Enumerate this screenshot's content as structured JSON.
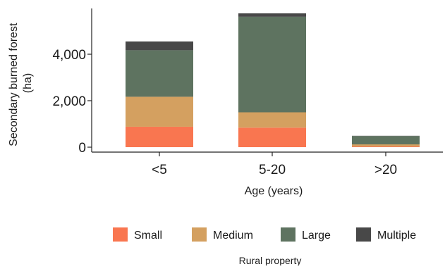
{
  "chart_data": {
    "type": "bar",
    "stacked": true,
    "title": "",
    "xlabel": "Age (years)",
    "ylabel_line1": "Secondary burned forest",
    "ylabel_line2": "(ha)",
    "categories": [
      "<5",
      "5-20",
      ">20"
    ],
    "ylim": [
      0,
      5900
    ],
    "yticks": [
      {
        "value": 0,
        "label": "0"
      },
      {
        "value": 2000,
        "label": "2,000"
      },
      {
        "value": 4000,
        "label": "4,000"
      }
    ],
    "grid": false,
    "legend": {
      "title": "Rural property",
      "placement": "bottom"
    },
    "series": [
      {
        "name": "Small",
        "color": "#f97650",
        "values": [
          880,
          840,
          30
        ]
      },
      {
        "name": "Medium",
        "color": "#d4a060",
        "values": [
          1290,
          660,
          90
        ]
      },
      {
        "name": "Large",
        "color": "#5e7360",
        "values": [
          2000,
          4110,
          360
        ]
      },
      {
        "name": "Multiple",
        "color": "#484848",
        "values": [
          380,
          150,
          10
        ]
      }
    ]
  }
}
